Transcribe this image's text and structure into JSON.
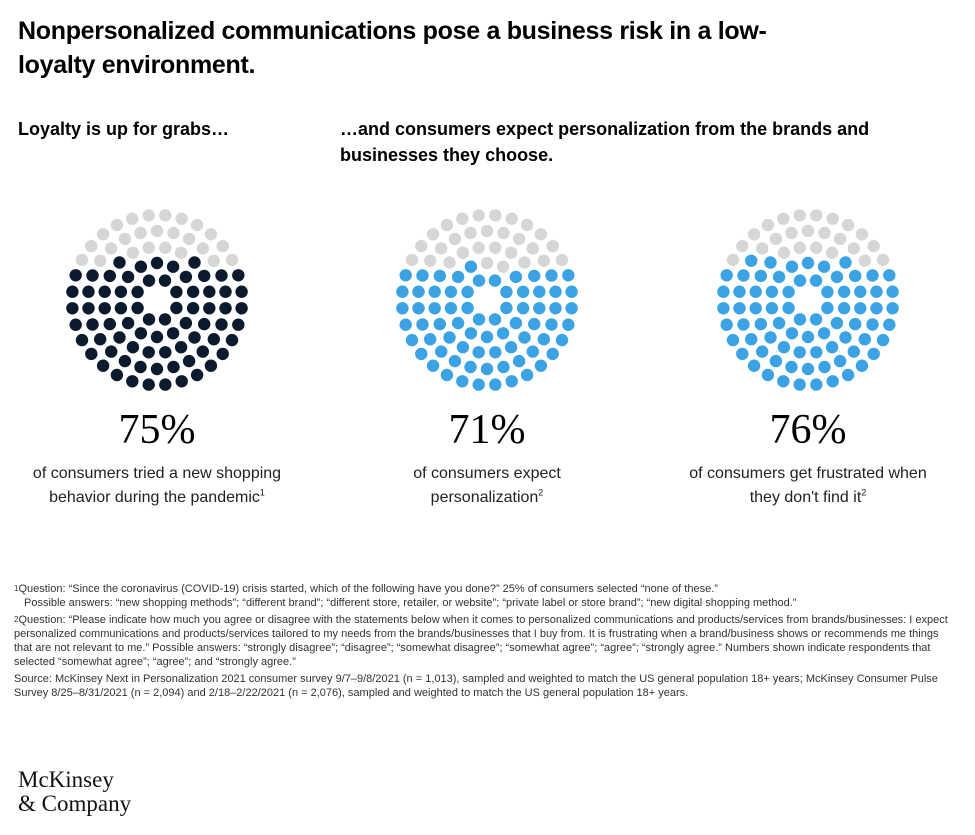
{
  "title": "Nonpersonalized communications pose a business risk in a low-loyalty environment.",
  "subheads": {
    "left": "Loyalty is up for grabs…",
    "right": "…and consumers expect personalization from the brands and businesses they choose."
  },
  "colors": {
    "navy": "#0b1a2d",
    "blue": "#3ba3e3",
    "grey": "#d6d6d6"
  },
  "chart_data": [
    {
      "type": "dot-matrix",
      "value": 75,
      "label": "75%",
      "description": "of consumers tried a new shopping behavior during the pandemic",
      "footnote": "1",
      "color": "#0b1a2d"
    },
    {
      "type": "dot-matrix",
      "value": 71,
      "label": "71%",
      "description": "of consumers expect personalization",
      "footnote": "2",
      "color": "#3ba3e3"
    },
    {
      "type": "dot-matrix",
      "value": 76,
      "label": "76%",
      "description": "of consumers get frustrated when they don't find it",
      "footnote": "2",
      "color": "#3ba3e3"
    }
  ],
  "footnotes": {
    "fn1_num": "1",
    "fn1_line1": "Question: “Since the coronavirus (COVID-19) crisis started, which of the following have you done?” 25% of consumers selected “none of these.”",
    "fn1_line2": "Possible answers: “new shopping methods”; “different brand”; “different store, retailer, or website”; “private label or store brand”; “new digital shopping method.”",
    "fn2_num": "2",
    "fn2_text": "Question: “Please indicate how much you agree or disagree with the statements below when it comes to personalized communications and products/services from brands/businesses: I expect personalized communications and products/services tailored to my needs from the brands/businesses that I buy from. It is frustrating when a brand/business shows or recommends me things that are not relevant to me.” Possible answers: “strongly disagree”; “disagree”; “somewhat disagree”; “somewhat agree”; “agree”; “strongly agree.” Numbers shown indicate respondents that selected “somewhat agree”; “agree”; and “strongly agree.”",
    "source": "Source: McKinsey Next in Personalization 2021 consumer survey 9/7–9/8/2021 (n = 1,013), sampled and weighted to match the US general population 18+ years; McKinsey Consumer Pulse Survey 8/25–8/31/2021 (n = 2,094) and 2/18–2/22/2021 (n = 2,076), sampled and weighted to match the US general population 18+ years."
  },
  "logo": {
    "line1": "McKinsey",
    "line2": "& Company"
  }
}
